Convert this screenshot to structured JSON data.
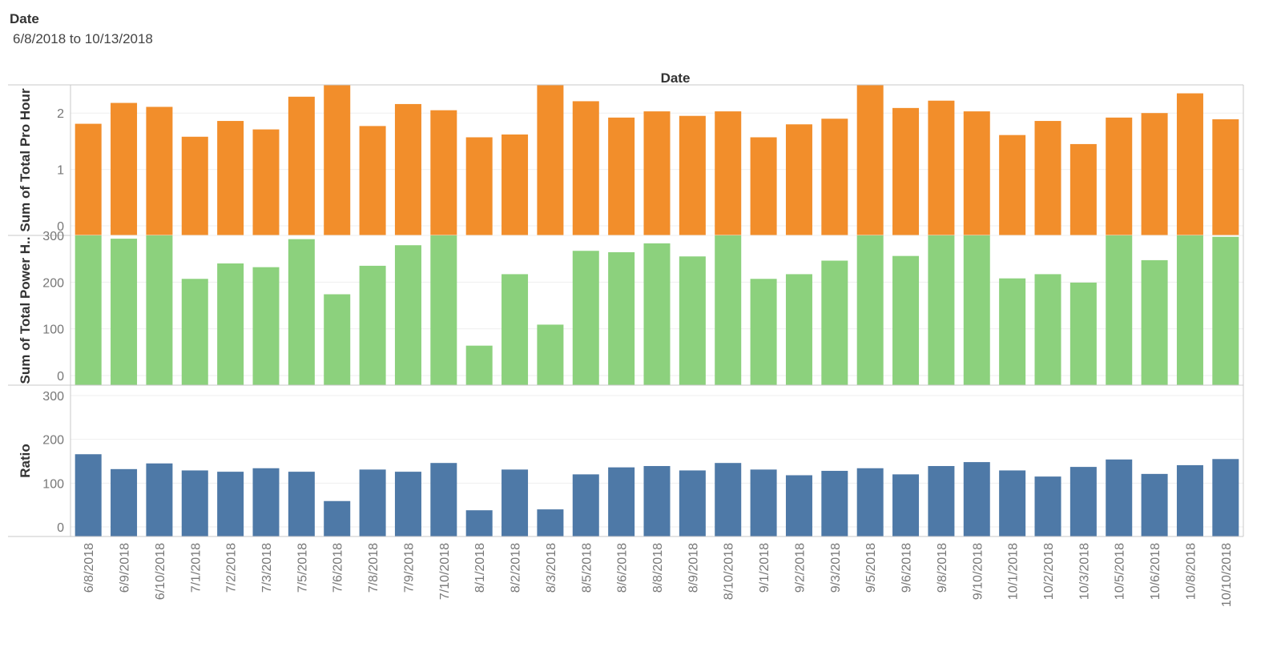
{
  "filter": {
    "title": "Date",
    "range": "6/8/2018 to 10/13/2018"
  },
  "chart_data": {
    "type": "bar",
    "title": "Date",
    "categories": [
      "6/8/2018",
      "6/9/2018",
      "6/10/2018",
      "7/1/2018",
      "7/2/2018",
      "7/3/2018",
      "7/5/2018",
      "7/6/2018",
      "7/8/2018",
      "7/9/2018",
      "7/10/2018",
      "8/1/2018",
      "8/2/2018",
      "8/3/2018",
      "8/5/2018",
      "8/6/2018",
      "8/8/2018",
      "8/9/2018",
      "8/10/2018",
      "9/1/2018",
      "9/2/2018",
      "9/3/2018",
      "9/5/2018",
      "9/6/2018",
      "9/8/2018",
      "9/10/2018",
      "10/1/2018",
      "10/2/2018",
      "10/3/2018",
      "10/5/2018",
      "10/6/2018",
      "10/8/2018",
      "10/10/2018"
    ],
    "panels": [
      {
        "name": "Sum of Total Pro Hour",
        "color": "#f28e2b",
        "ylim": [
          0,
          2.5
        ],
        "ticks": [
          0,
          1,
          2
        ],
        "values": [
          1.81,
          2.18,
          2.11,
          1.58,
          1.86,
          1.71,
          2.29,
          2.5,
          1.77,
          2.16,
          2.05,
          1.57,
          1.62,
          2.5,
          2.21,
          1.92,
          2.03,
          1.95,
          2.03,
          1.57,
          1.8,
          1.9,
          2.5,
          2.09,
          2.22,
          2.03,
          1.61,
          1.86,
          1.45,
          1.92,
          2.0,
          2.35,
          1.89
        ]
      },
      {
        "name": "Sum of Total Power H..",
        "color": "#8cd17d",
        "ylim": [
          0,
          300
        ],
        "ticks": [
          0,
          100,
          200,
          300
        ],
        "values": [
          300,
          293,
          300,
          207,
          240,
          232,
          292,
          174,
          235,
          279,
          300,
          64,
          217,
          109,
          267,
          264,
          283,
          255,
          300,
          207,
          217,
          246,
          300,
          256,
          300,
          300,
          208,
          217,
          199,
          300,
          247,
          300,
          297
        ]
      },
      {
        "name": "Ratio",
        "color": "#4e79a7",
        "ylim": [
          0,
          300
        ],
        "ticks": [
          0,
          100,
          200,
          300
        ],
        "values": [
          166,
          132,
          145,
          129,
          126,
          134,
          126,
          59,
          131,
          126,
          146,
          38,
          131,
          40,
          120,
          136,
          139,
          129,
          146,
          131,
          118,
          128,
          134,
          120,
          139,
          148,
          129,
          115,
          137,
          154,
          121,
          141,
          155
        ]
      }
    ]
  }
}
